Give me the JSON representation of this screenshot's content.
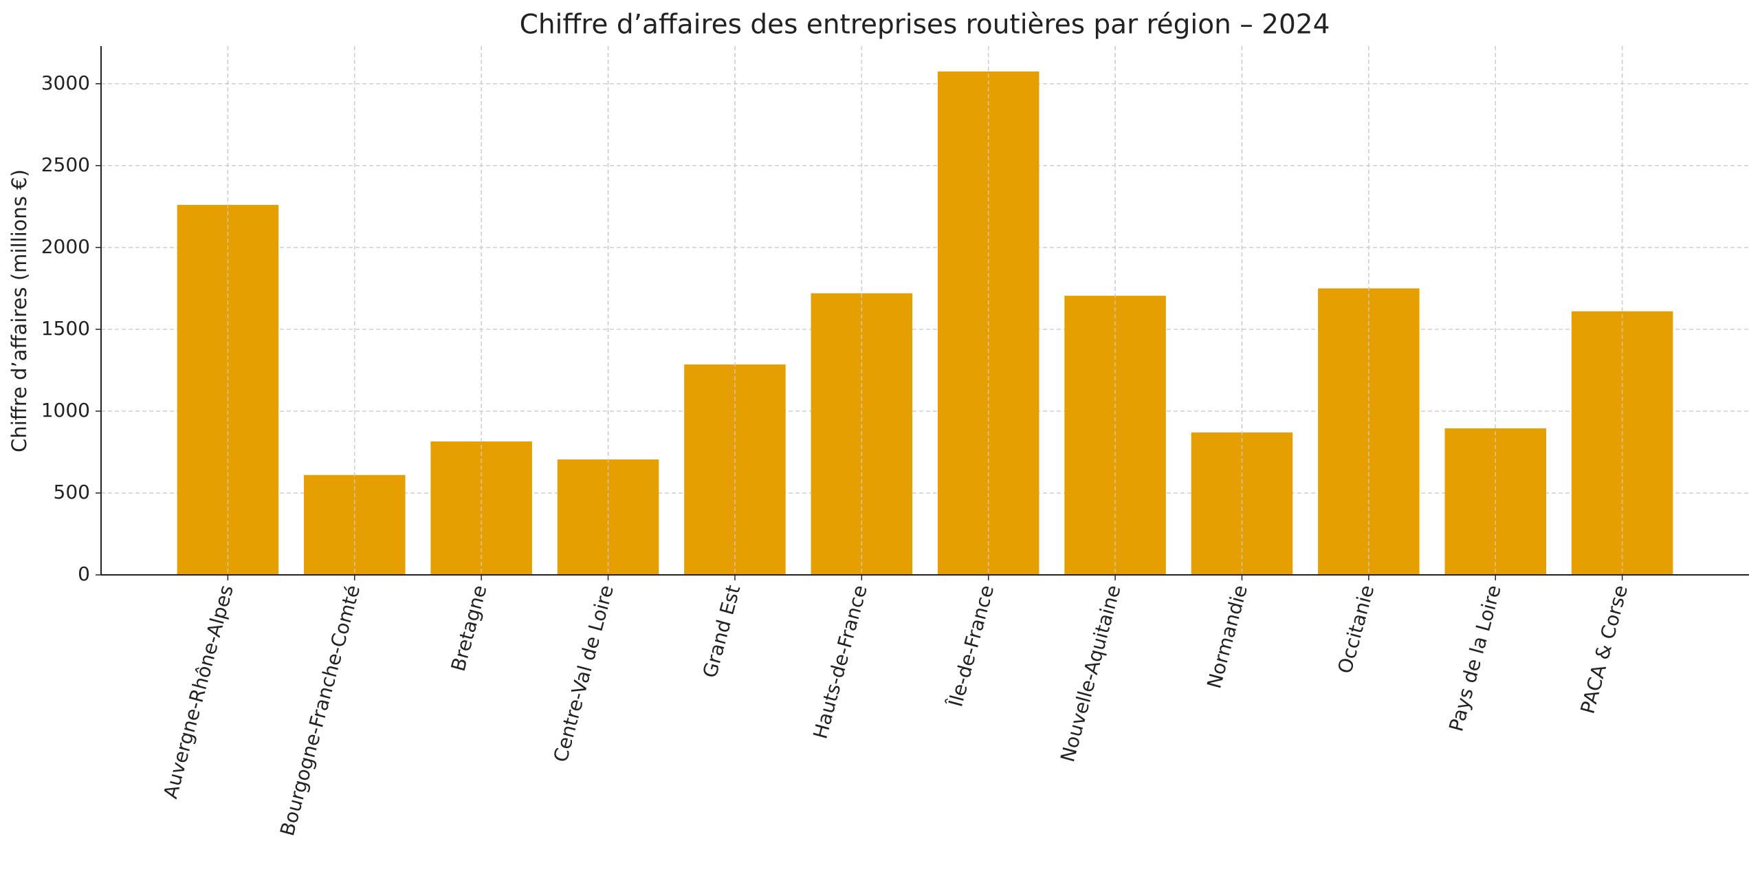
{
  "chart_data": {
    "type": "bar",
    "title": "Chiffre d’affaires des entreprises routières par région – 2024",
    "y_label": "Chiffre d’affaires (millions €)",
    "categories": [
      "Auvergne-Rhône-Alpes",
      "Bourgogne-Franche-Comté",
      "Bretagne",
      "Centre-Val de Loire",
      "Grand Est",
      "Hauts-de-France",
      "Île-de-France",
      "Nouvelle-Aquitaine",
      "Normandie",
      "Occitanie",
      "Pays de la Loire",
      "PACA & Corse"
    ],
    "values": [
      2260,
      610,
      815,
      705,
      1285,
      1720,
      3075,
      1705,
      870,
      1750,
      895,
      1610
    ],
    "color": "#e69f00",
    "ylim": [
      0,
      3230
    ],
    "yticks": [
      0,
      500,
      1000,
      1500,
      2000,
      2500,
      3000
    ],
    "grid": true
  }
}
